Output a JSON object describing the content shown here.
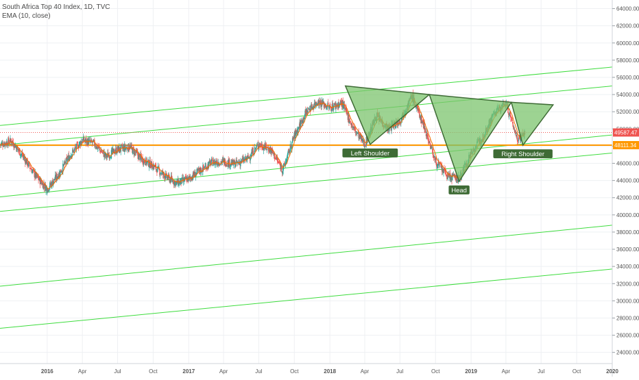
{
  "legend": {
    "title": "South Africa Top 40 Index, 1D, TVC",
    "indicator": "EMA (10, close)"
  },
  "colors": {
    "up": "#26a69a",
    "down": "#ef5350",
    "ema": "#ef6c00",
    "channel": "#3cdc3c",
    "support": "#ff9800",
    "pattern_fill": "#7cc46e",
    "pattern_stroke": "#3e6b35",
    "last_price": "#ef5350"
  },
  "chart_data": {
    "type": "candlestick",
    "title": "South Africa Top 40 Index, 1D, TVC",
    "ylim": [
      22700,
      65000
    ],
    "y_ticks": [
      24000,
      26000,
      28000,
      30000,
      32000,
      34000,
      36000,
      38000,
      40000,
      42000,
      44000,
      46000,
      48000,
      50000,
      52000,
      54000,
      56000,
      58000,
      60000,
      62000,
      64000
    ],
    "x_ticks": [
      "2016",
      "Apr",
      "Jul",
      "Oct",
      "2017",
      "Apr",
      "Jul",
      "Oct",
      "2018",
      "Apr",
      "Jul",
      "Oct",
      "2019",
      "Apr",
      "Jul",
      "Oct",
      "2020"
    ],
    "x_tick_dates": [
      "2016-01",
      "2016-04",
      "2016-07",
      "2016-10",
      "2017-01",
      "2017-04",
      "2017-07",
      "2017-10",
      "2018-01",
      "2018-04",
      "2018-07",
      "2018-10",
      "2019-01",
      "2019-04",
      "2019-07",
      "2019-10",
      "2020-01"
    ],
    "x_range": [
      "2015-09",
      "2020-01"
    ],
    "price_path": [
      {
        "date": "2015-09",
        "close": 48200
      },
      {
        "date": "2015-10",
        "close": 48600
      },
      {
        "date": "2015-11",
        "close": 46700
      },
      {
        "date": "2015-12",
        "close": 44600
      },
      {
        "date": "2016-01",
        "close": 43000
      },
      {
        "date": "2016-02",
        "close": 44800
      },
      {
        "date": "2016-03",
        "close": 47000
      },
      {
        "date": "2016-04",
        "close": 48700
      },
      {
        "date": "2016-05",
        "close": 48300
      },
      {
        "date": "2016-06",
        "close": 46800
      },
      {
        "date": "2016-07",
        "close": 47600
      },
      {
        "date": "2016-08",
        "close": 47900
      },
      {
        "date": "2016-09",
        "close": 46500
      },
      {
        "date": "2016-10",
        "close": 45700
      },
      {
        "date": "2016-11",
        "close": 44500
      },
      {
        "date": "2016-12",
        "close": 43700
      },
      {
        "date": "2017-01",
        "close": 44200
      },
      {
        "date": "2017-02",
        "close": 45200
      },
      {
        "date": "2017-03",
        "close": 46100
      },
      {
        "date": "2017-04",
        "close": 46200
      },
      {
        "date": "2017-05",
        "close": 45900
      },
      {
        "date": "2017-06",
        "close": 46500
      },
      {
        "date": "2017-07",
        "close": 48200
      },
      {
        "date": "2017-08",
        "close": 47600
      },
      {
        "date": "2017-09",
        "close": 45200
      },
      {
        "date": "2017-10",
        "close": 49200
      },
      {
        "date": "2017-11",
        "close": 52000
      },
      {
        "date": "2017-12",
        "close": 53200
      },
      {
        "date": "2018-01",
        "close": 52500
      },
      {
        "date": "2018-02",
        "close": 53000
      },
      {
        "date": "2018-03",
        "close": 50200
      },
      {
        "date": "2018-04",
        "close": 48200
      },
      {
        "date": "2018-05",
        "close": 51500
      },
      {
        "date": "2018-06",
        "close": 50000
      },
      {
        "date": "2018-07",
        "close": 51000
      },
      {
        "date": "2018-08",
        "close": 53800
      },
      {
        "date": "2018-09",
        "close": 50400
      },
      {
        "date": "2018-10",
        "close": 46200
      },
      {
        "date": "2018-11",
        "close": 44500
      },
      {
        "date": "2018-12",
        "close": 44200
      },
      {
        "date": "2019-01",
        "close": 47200
      },
      {
        "date": "2019-02",
        "close": 49200
      },
      {
        "date": "2019-03",
        "close": 51800
      },
      {
        "date": "2019-04",
        "close": 53000
      },
      {
        "date": "2019-05",
        "close": 48800
      },
      {
        "date": "2019-05-20",
        "close": 49588
      }
    ],
    "channel_lines": [
      {
        "start": {
          "date": "2015-09",
          "price": 50400
        },
        "end": {
          "date": "2020-01",
          "price": 57200
        }
      },
      {
        "start": {
          "date": "2015-09",
          "price": 48100
        },
        "end": {
          "date": "2020-01",
          "price": 55000
        }
      },
      {
        "start": {
          "date": "2015-09",
          "price": 42100
        },
        "end": {
          "date": "2020-01",
          "price": 49300
        }
      },
      {
        "start": {
          "date": "2015-09",
          "price": 40400
        },
        "end": {
          "date": "2020-01",
          "price": 47200
        }
      },
      {
        "start": {
          "date": "2015-09",
          "price": 31700
        },
        "end": {
          "date": "2020-01",
          "price": 38800
        }
      },
      {
        "start": {
          "date": "2015-09",
          "price": 26800
        },
        "end": {
          "date": "2020-01",
          "price": 33700
        }
      }
    ],
    "support_level": 48111.34,
    "support_label": "48111.34",
    "last_price": 49587.47,
    "last_price_label": "49587.47",
    "pattern": {
      "name": "Head and Shoulders",
      "triangles": [
        [
          {
            "date": "2018-02-10",
            "price": 55000
          },
          {
            "date": "2018-09-15",
            "price": 54000
          },
          {
            "date": "2018-04-15",
            "price": 48200
          }
        ],
        [
          {
            "date": "2018-09-15",
            "price": 54000
          },
          {
            "date": "2019-04-15",
            "price": 53100
          },
          {
            "date": "2018-12-01",
            "price": 43900
          }
        ],
        [
          {
            "date": "2019-04-15",
            "price": 53100
          },
          {
            "date": "2019-08-01",
            "price": 52800
          },
          {
            "date": "2019-05-15",
            "price": 48100
          }
        ]
      ],
      "labels": [
        {
          "text": "Left Shoulder",
          "date": "2018-04-15",
          "price": 48200
        },
        {
          "text": "Head",
          "date": "2018-12-01",
          "price": 43900
        },
        {
          "text": "Right Shoulder",
          "date": "2019-05-15",
          "price": 48100
        }
      ]
    }
  }
}
